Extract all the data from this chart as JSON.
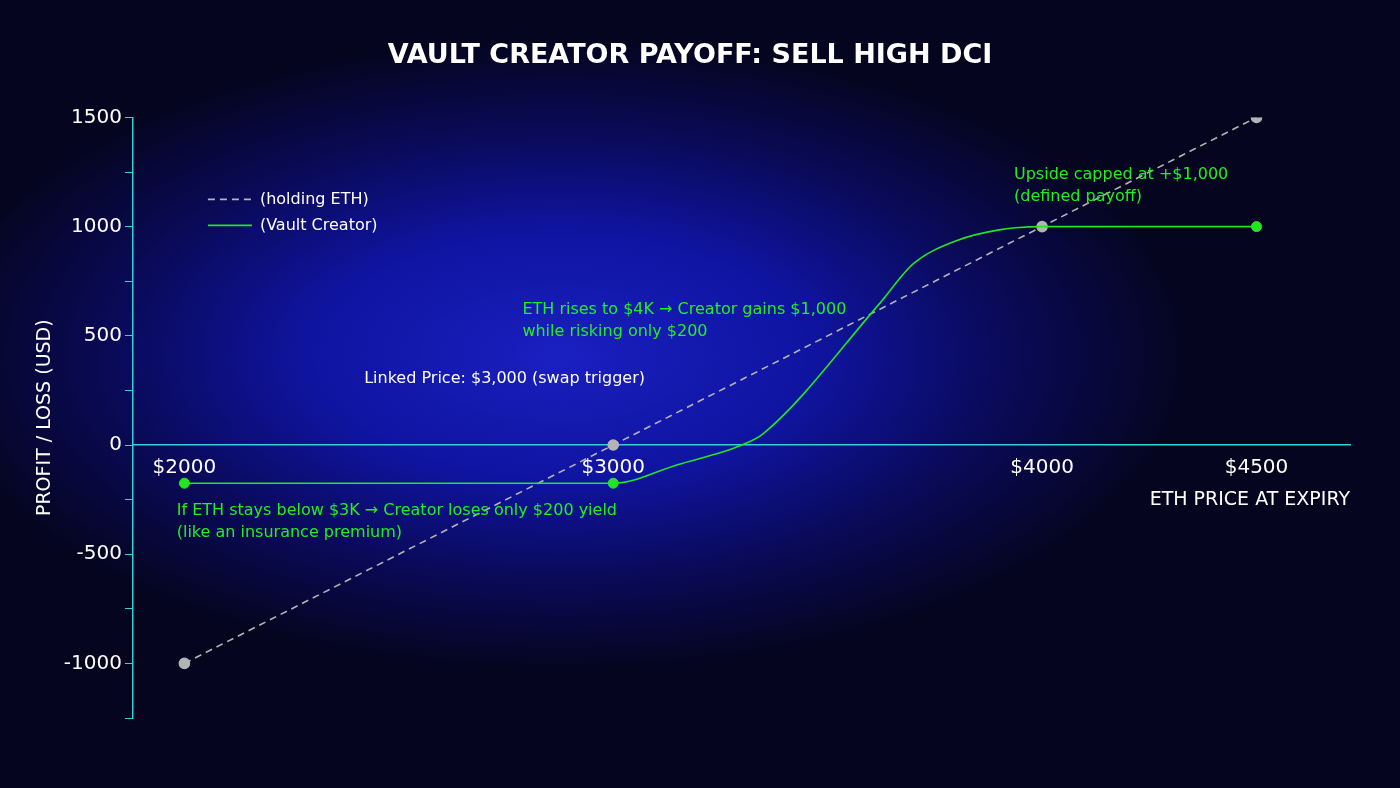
{
  "chart_data": {
    "type": "line",
    "title": "VAULT CREATOR PAYOFF: SELL HIGH DCI",
    "xlabel": "ETH PRICE AT EXPIRY",
    "ylabel": "PROFIT / LOSS (USD)",
    "xlim": [
      1880,
      4718
    ],
    "xticks": [
      {
        "value": 2000,
        "label": "$2000"
      },
      {
        "value": 3000,
        "label": "$3000"
      },
      {
        "value": 4000,
        "label": "$4000"
      },
      {
        "value": 4500,
        "label": "$4500"
      }
    ],
    "ylim": [
      -1250,
      1500
    ],
    "yticks": [
      {
        "value": -1250,
        "label": null
      },
      -1000,
      {
        "value": -750,
        "label": null
      },
      -500,
      {
        "value": -250,
        "label": null
      },
      0,
      {
        "value": 250,
        "label": null
      },
      500,
      {
        "value": 750,
        "label": null
      },
      1000,
      {
        "value": 1250,
        "label": null
      },
      1500
    ],
    "grid": false,
    "legend": "top left",
    "series": [
      {
        "name": "(holding ETH)",
        "color": "#b4b4b4",
        "line_style": "dashed",
        "marker": "circle",
        "x": [
          2000,
          3000,
          4000,
          4500
        ],
        "values": [
          -1000,
          0,
          1000,
          1500
        ]
      },
      {
        "name": "(Vault Creator)",
        "color": "#22e622",
        "line_style": "solid",
        "marker": "none",
        "x": [
          2000,
          3000,
          3150,
          3300,
          3350,
          3620,
          3700,
          3800,
          3900,
          4000,
          4500
        ],
        "values": [
          -175,
          -175,
          -90,
          0,
          52,
          645,
          830,
          935,
          985,
          1000,
          1000
        ]
      },
      {
        "type": "scatter",
        "color": "#22e622",
        "marker": "circle",
        "x": [
          2000,
          3000,
          4500
        ],
        "values": [
          -175,
          -175,
          1000
        ]
      }
    ],
    "annotations": [
      "Upside capped at +$1,000\n(defined payoff)",
      "ETH rises to $4K → Creator gains $1,000\nwhile risking only $200",
      "Linked Price: $3,000 (swap trigger)",
      "If ETH stays below $3K → Creator loses only $200 yield\n(like an insurance premium)"
    ]
  }
}
